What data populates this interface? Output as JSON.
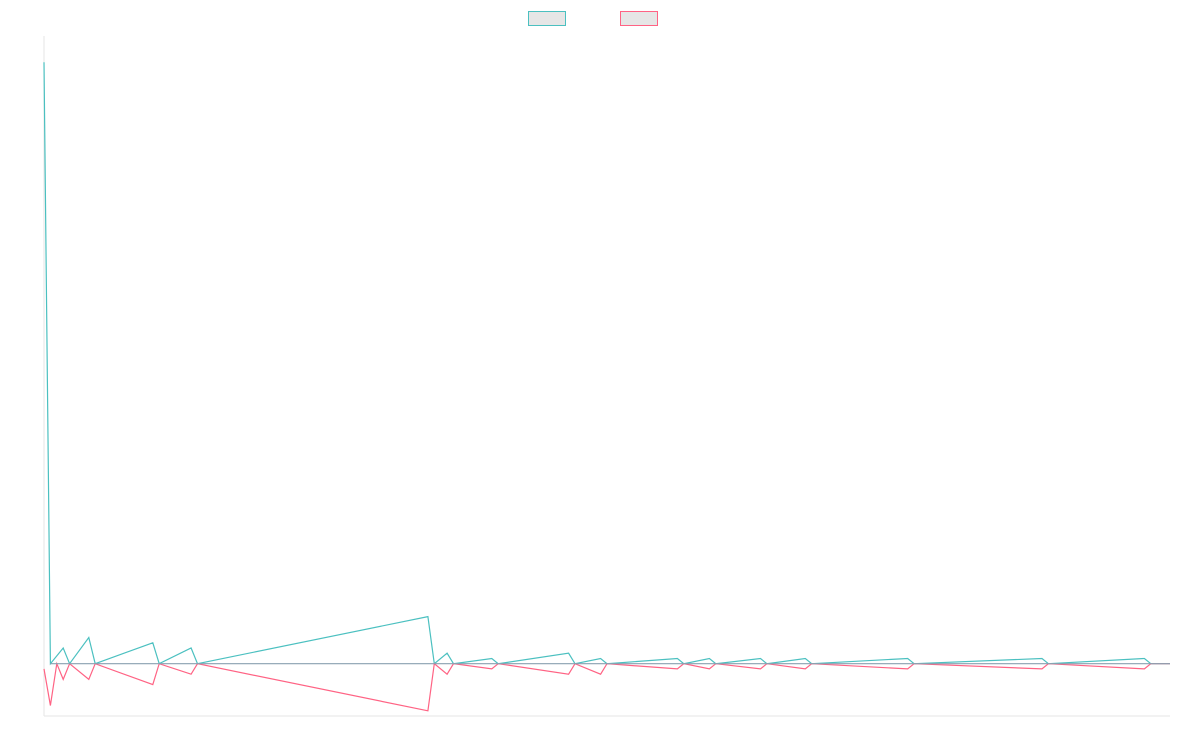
{
  "chart_data": {
    "type": "line",
    "title": "",
    "xlabel": "",
    "ylabel": "",
    "legend_position": "top",
    "grid": false,
    "ylim": [
      -1,
      12
    ],
    "x": [
      "1",
      "2",
      "3",
      "4",
      "5",
      "6",
      "7",
      "8",
      "9",
      "10",
      "11",
      "12",
      "13",
      "14",
      "15",
      "16",
      "17",
      "18",
      "19",
      "20",
      "21",
      "22",
      "23",
      "24",
      "25",
      "26",
      "27",
      "28",
      "29",
      "30",
      "31",
      "32",
      "33",
      "34",
      "35",
      "36",
      "37",
      "38",
      "39",
      "40",
      "41",
      "42",
      "43",
      "44",
      "45",
      "46",
      "47",
      "48",
      "49",
      "50",
      "51",
      "52",
      "53",
      "54",
      "55",
      "56",
      "57",
      "58",
      "59",
      "60",
      "61",
      "62",
      "63",
      "64",
      "65",
      "66",
      "67",
      "68",
      "69",
      "70",
      "71",
      "72",
      "73",
      "74",
      "75",
      "76",
      "77",
      "78",
      "79",
      "80",
      "81",
      "82",
      "83",
      "84",
      "85",
      "86",
      "87",
      "88",
      "89",
      "90",
      "91",
      "92",
      "93",
      "94",
      "95",
      "96",
      "97",
      "98",
      "99",
      "100",
      "101",
      "102",
      "103",
      "104",
      "105",
      "106",
      "107",
      "108",
      "109",
      "110",
      "111",
      "112",
      "113",
      "114",
      "115",
      "116",
      "117",
      "118",
      "119",
      "120",
      "121",
      "122",
      "123",
      "124",
      "125",
      "126",
      "127",
      "128",
      "129",
      "130",
      "131",
      "132",
      "133",
      "134",
      "135",
      "136",
      "137",
      "138",
      "139",
      "140",
      "141",
      "142",
      "143",
      "144",
      "145",
      "146",
      "147",
      "148",
      "149",
      "150",
      "151",
      "152",
      "153",
      "154",
      "155",
      "156",
      "157",
      "158",
      "159",
      "160",
      "161",
      "162",
      "163",
      "164",
      "165",
      "166",
      "167",
      "168",
      "169",
      "170",
      "171",
      "172",
      "173",
      "174",
      "175",
      "176"
    ],
    "series": [
      {
        "name": "",
        "color": "#4bc0c0",
        "points": [
          [
            0,
            11.5
          ],
          [
            1,
            0
          ],
          [
            3,
            0.3
          ],
          [
            4,
            0
          ],
          [
            7,
            0.5
          ],
          [
            8,
            0
          ],
          [
            17,
            0.4
          ],
          [
            18,
            0
          ],
          [
            23,
            0.3
          ],
          [
            24,
            0
          ],
          [
            60,
            0.9
          ],
          [
            61,
            0
          ],
          [
            63,
            0.2
          ],
          [
            64,
            0
          ],
          [
            70,
            0.1
          ],
          [
            71,
            0
          ],
          [
            82,
            0.2
          ],
          [
            83,
            0
          ],
          [
            87,
            0.1
          ],
          [
            88,
            0
          ],
          [
            99,
            0.1
          ],
          [
            100,
            0
          ],
          [
            104,
            0.1
          ],
          [
            105,
            0
          ],
          [
            112,
            0.1
          ],
          [
            113,
            0
          ],
          [
            119,
            0.1
          ],
          [
            120,
            0
          ],
          [
            135,
            0.1
          ],
          [
            136,
            0
          ],
          [
            156,
            0.1
          ],
          [
            157,
            0
          ],
          [
            172,
            0.1
          ],
          [
            173,
            0
          ],
          [
            176,
            0
          ]
        ]
      },
      {
        "name": "",
        "color": "#ff6384",
        "points": [
          [
            0,
            -0.1
          ],
          [
            1,
            -0.8
          ],
          [
            2,
            0
          ],
          [
            3,
            -0.3
          ],
          [
            4,
            0
          ],
          [
            7,
            -0.3
          ],
          [
            8,
            0
          ],
          [
            17,
            -0.4
          ],
          [
            18,
            0
          ],
          [
            23,
            -0.2
          ],
          [
            24,
            0
          ],
          [
            60,
            -0.9
          ],
          [
            61,
            0
          ],
          [
            63,
            -0.2
          ],
          [
            64,
            0
          ],
          [
            70,
            -0.1
          ],
          [
            71,
            0
          ],
          [
            82,
            -0.2
          ],
          [
            83,
            0
          ],
          [
            87,
            -0.2
          ],
          [
            88,
            0
          ],
          [
            99,
            -0.1
          ],
          [
            100,
            0
          ],
          [
            104,
            -0.1
          ],
          [
            105,
            0
          ],
          [
            112,
            -0.1
          ],
          [
            113,
            0
          ],
          [
            119,
            -0.1
          ],
          [
            120,
            0
          ],
          [
            135,
            -0.1
          ],
          [
            136,
            0
          ],
          [
            156,
            -0.1
          ],
          [
            157,
            0
          ],
          [
            172,
            -0.1
          ],
          [
            173,
            0
          ],
          [
            176,
            0
          ]
        ]
      }
    ]
  }
}
